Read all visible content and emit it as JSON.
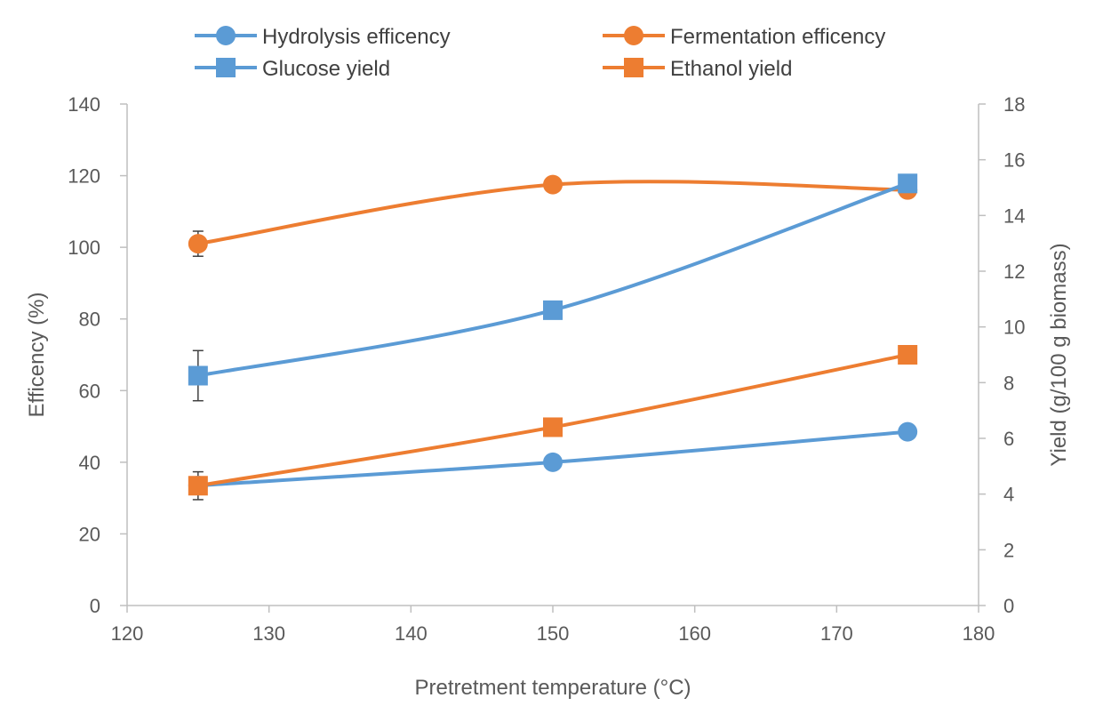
{
  "chart_data": {
    "type": "line",
    "xlabel": "Pretretment temperature (°C)",
    "ylabel": "Efficency (%)",
    "y2label": "Yield (g/100 g biomass)",
    "xlim": [
      120,
      180
    ],
    "ylim": [
      0,
      140
    ],
    "y2lim": [
      0,
      18
    ],
    "xticks": [
      "120",
      "130",
      "140",
      "150",
      "160",
      "170",
      "180"
    ],
    "yticks": [
      "0",
      "20",
      "40",
      "60",
      "80",
      "100",
      "120",
      "140"
    ],
    "y2ticks": [
      "0",
      "2",
      "4",
      "6",
      "8",
      "10",
      "12",
      "14",
      "16",
      "18"
    ],
    "grid": false,
    "legend_position": "top",
    "smooth_lines": true,
    "series": [
      {
        "name": "Hydrolysis efficency",
        "axis": "left",
        "marker": "circle",
        "color": "#5B9BD5",
        "x": [
          125,
          150,
          175
        ],
        "y": [
          33.5,
          40,
          48.5
        ],
        "err": [
          0,
          0,
          0
        ]
      },
      {
        "name": "Fermentation efficency",
        "axis": "left",
        "marker": "circle",
        "color": "#ED7D31",
        "x": [
          125,
          150,
          175
        ],
        "y": [
          101,
          117.5,
          116
        ],
        "err": [
          3.5,
          0,
          0
        ]
      },
      {
        "name": "Glucose yield",
        "axis": "right",
        "marker": "square",
        "color": "#5B9BD5",
        "x": [
          125,
          150,
          175
        ],
        "y": [
          8.25,
          10.6,
          15.15
        ],
        "err": [
          0.9,
          0,
          0.3
        ]
      },
      {
        "name": "Ethanol yield",
        "axis": "right",
        "marker": "square",
        "color": "#ED7D31",
        "x": [
          125,
          150,
          175
        ],
        "y": [
          4.3,
          6.4,
          9.0
        ],
        "err": [
          0.5,
          0,
          0
        ]
      }
    ]
  }
}
